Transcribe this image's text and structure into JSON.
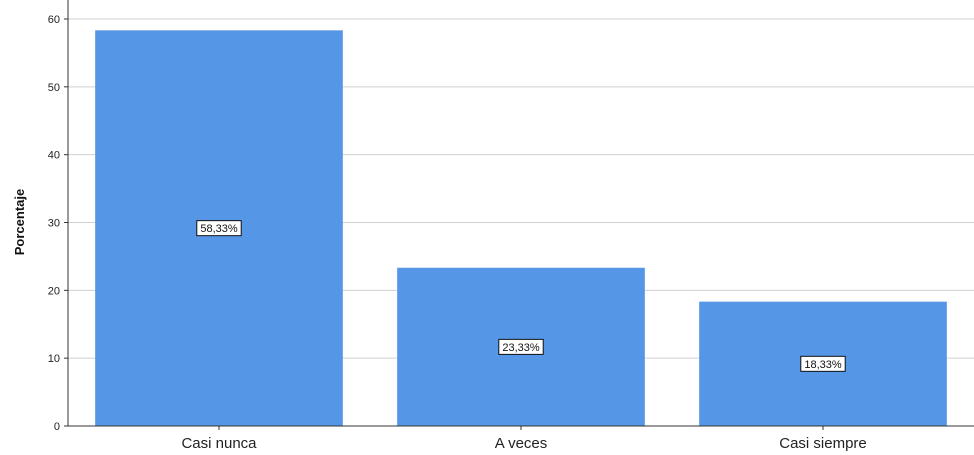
{
  "chart_data": {
    "type": "bar",
    "categories": [
      "Casi nunca",
      "A veces",
      "Casi siempre"
    ],
    "values": [
      58.33,
      23.33,
      18.33
    ],
    "data_labels": [
      "58,33%",
      "23,33%",
      "18,33%"
    ],
    "xlabel": "",
    "ylabel": "Porcentaje",
    "ylim": [
      0,
      60
    ],
    "yticks": [
      0,
      10,
      20,
      30,
      40,
      50,
      60
    ],
    "grid": true,
    "legend": "none",
    "bar_color": "#5596e6"
  }
}
